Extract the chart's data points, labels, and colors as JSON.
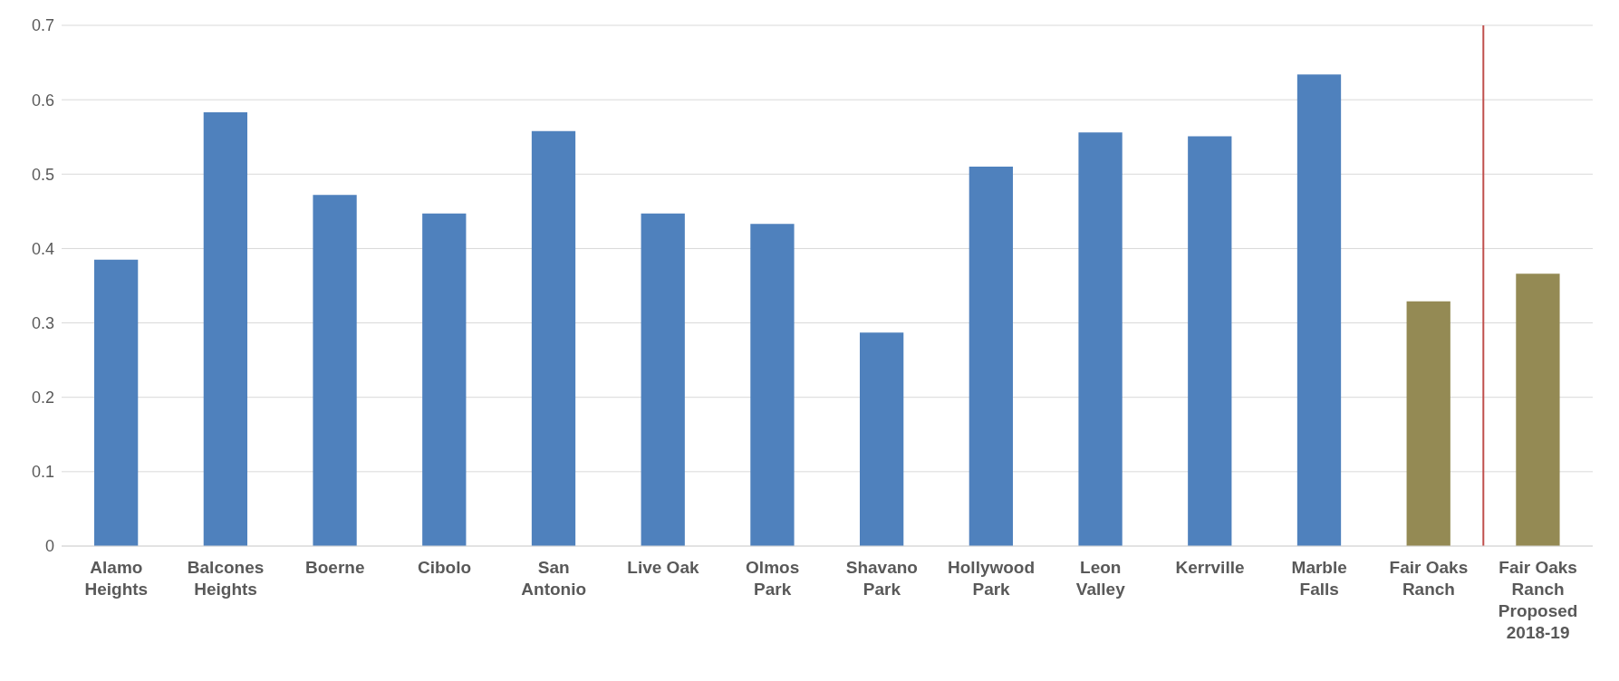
{
  "chart_data": {
    "type": "bar",
    "categories": [
      "Alamo Heights",
      "Balcones Heights",
      "Boerne",
      "Cibolo",
      "San Antonio",
      "Live Oak",
      "Olmos Park",
      "Shavano Park",
      "Hollywood Park",
      "Leon Valley",
      "Kerrville",
      "Marble Falls",
      "Fair Oaks Ranch",
      "Fair Oaks Ranch Proposed 2018-19"
    ],
    "values": [
      0.385,
      0.583,
      0.472,
      0.447,
      0.558,
      0.447,
      0.433,
      0.287,
      0.51,
      0.556,
      0.551,
      0.634,
      0.329,
      0.366
    ],
    "colors": [
      "#4f81bd",
      "#4f81bd",
      "#4f81bd",
      "#4f81bd",
      "#4f81bd",
      "#4f81bd",
      "#4f81bd",
      "#4f81bd",
      "#4f81bd",
      "#4f81bd",
      "#4f81bd",
      "#4f81bd",
      "#948a54",
      "#948a54"
    ],
    "ylim": [
      0,
      0.7
    ],
    "yticks": [
      0,
      0.1,
      0.2,
      0.3,
      0.4,
      0.5,
      0.6,
      0.7
    ],
    "grid": "y",
    "legend": false,
    "ref_lines": [
      {
        "axis": "x",
        "value": "Fair Oaks Ranch Proposed 2018-19",
        "color": "#c0504d"
      }
    ]
  }
}
